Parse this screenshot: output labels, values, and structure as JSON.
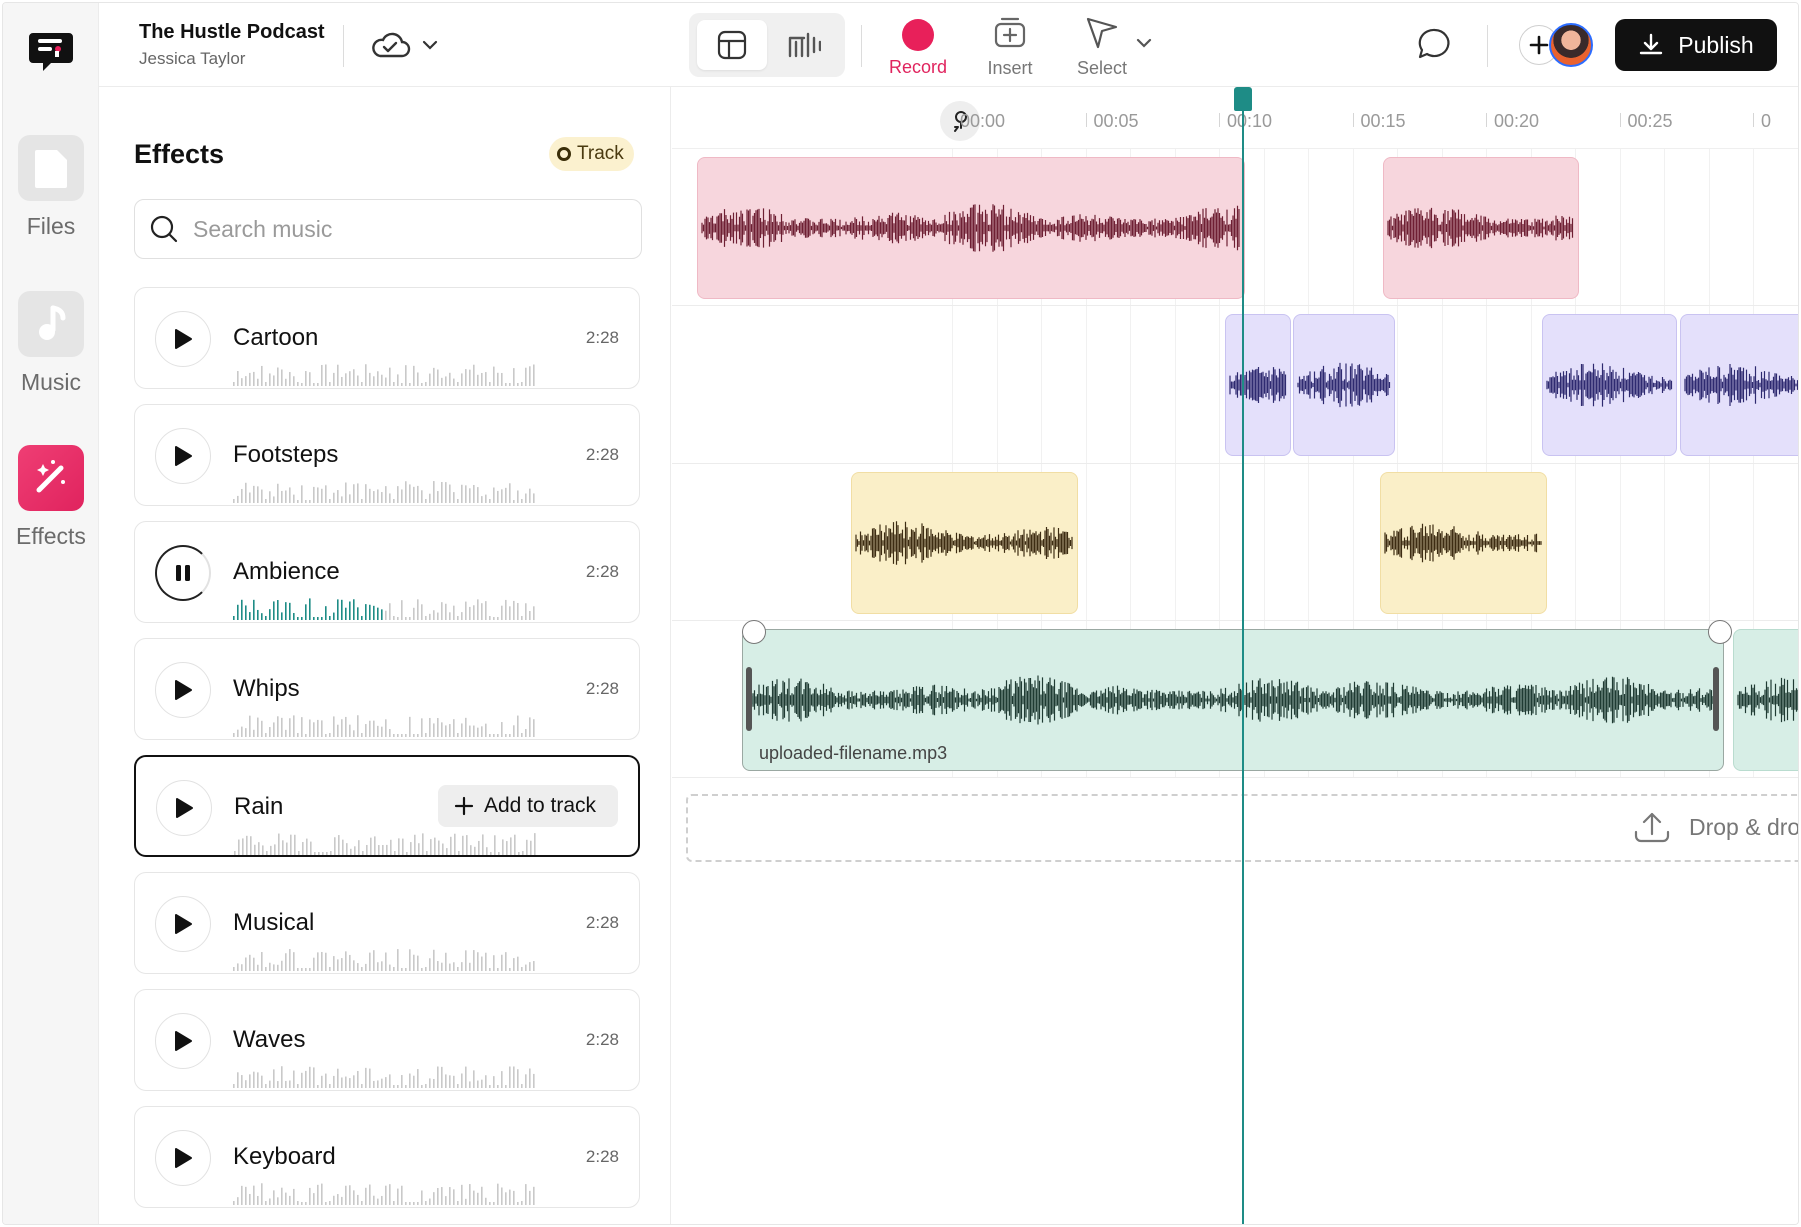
{
  "header": {
    "title": "The Hustle Podcast",
    "author": "Jessica Taylor",
    "tools": {
      "record": "Record",
      "insert": "Insert",
      "select": "Select"
    },
    "publish_label": "Publish"
  },
  "rail": {
    "items": [
      {
        "label": "Files",
        "icon": "file-icon"
      },
      {
        "label": "Music",
        "icon": "music-note-icon"
      },
      {
        "label": "Effects",
        "icon": "magic-wand-icon",
        "active": true
      }
    ]
  },
  "effects": {
    "title": "Effects",
    "badge": "Track",
    "search_placeholder": "Search music",
    "add_to_track_label": "Add to track",
    "items": [
      {
        "name": "Cartoon",
        "duration": "2:28"
      },
      {
        "name": "Footsteps",
        "duration": "2:28"
      },
      {
        "name": "Ambience",
        "duration": "2:28",
        "state": "playing",
        "progress": 0.5
      },
      {
        "name": "Whips",
        "duration": "2:28"
      },
      {
        "name": "Rain",
        "duration": "",
        "state": "hover"
      },
      {
        "name": "Musical",
        "duration": "2:28"
      },
      {
        "name": "Waves",
        "duration": "2:28"
      },
      {
        "name": "Keyboard",
        "duration": "2:28"
      }
    ]
  },
  "timeline": {
    "ruler_labels": [
      "00:00",
      "00:05",
      "00:10",
      "00:15",
      "00:20",
      "00:25",
      "0"
    ],
    "clip_filename": "uploaded-filename.mp3",
    "drop_label": "Drop & drop",
    "colors": {
      "accent": "#1e8c86",
      "record": "#e8205a",
      "track_pink": "#f7d6dd",
      "track_lavender": "#e4e0fb",
      "track_yellow": "#faefc8",
      "track_mint": "#d7eee6"
    }
  }
}
